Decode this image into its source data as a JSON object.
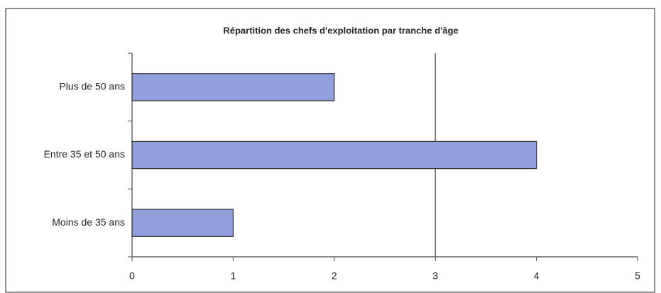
{
  "chart_data": {
    "type": "barh",
    "title": "Répartition des chefs d'exploitation par tranche d'âge",
    "categories": [
      "Plus de 50 ans",
      "Entre 35 et 50 ans",
      "Moins de 35 ans"
    ],
    "values": [
      2,
      4,
      1
    ],
    "color": "#8e9fdb",
    "xlim": [
      0,
      5
    ],
    "xticks": [
      0,
      1,
      2,
      3,
      4,
      5
    ],
    "xgrid": [
      3
    ]
  }
}
